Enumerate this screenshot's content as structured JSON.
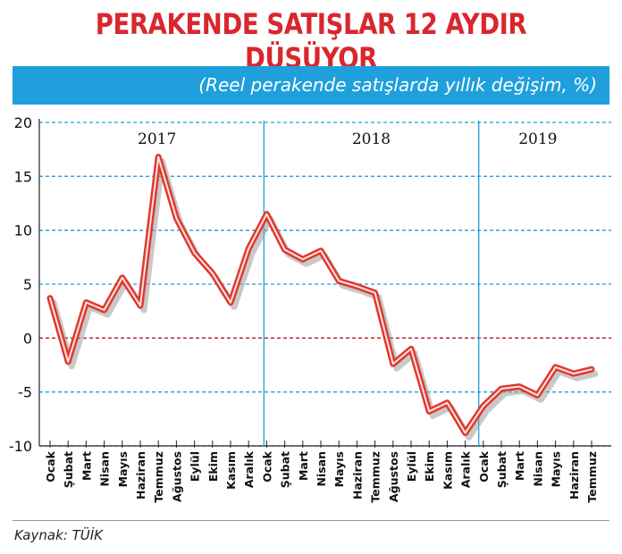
{
  "title": "PERAKENDE SATIŞLAR 12 AYDIR DÜŞÜYOR",
  "subtitle": "(Reel perakende satışlarda yıllık değişim, %)",
  "source": "Kaynak: TÜİK",
  "colors": {
    "title": "#d8272d",
    "banner": "#1fa0dc",
    "line": "#e0392f",
    "grid": "#1fa0dc",
    "zero": "#b01c22"
  },
  "chart_data": {
    "type": "line",
    "ylim": [
      -10,
      20
    ],
    "yticks": [
      20,
      15,
      10,
      5,
      0,
      -5,
      -10
    ],
    "grid": true,
    "year_labels": [
      "2017",
      "2018",
      "2019"
    ],
    "categories": [
      "Ocak",
      "Şubat",
      "Mart",
      "Nisan",
      "Mayıs",
      "Haziran",
      "Temmuz",
      "Ağustos",
      "Eylül",
      "Ekim",
      "Kasım",
      "Aralık",
      "Ocak",
      "Şubat",
      "Mart",
      "Nisan",
      "Mayıs",
      "Haziran",
      "Temmuz",
      "Ağustos",
      "Eylül",
      "Ekim",
      "Kasım",
      "Aralık",
      "Ocak",
      "Şubat",
      "Mart",
      "Nisan",
      "Mayıs",
      "Haziran",
      "Temmuz"
    ],
    "series": [
      {
        "values": [
          3.7,
          -2.2,
          3.3,
          2.6,
          5.6,
          3.0,
          16.8,
          11.1,
          7.9,
          6.0,
          3.3,
          8.3,
          11.5,
          8.2,
          7.3,
          8.1,
          5.3,
          4.8,
          4.2,
          -2.4,
          -1.0,
          -6.8,
          -6.0,
          -8.8,
          -6.3,
          -4.7,
          -4.5,
          -5.3,
          -2.7,
          -3.3,
          -2.9
        ]
      }
    ]
  }
}
